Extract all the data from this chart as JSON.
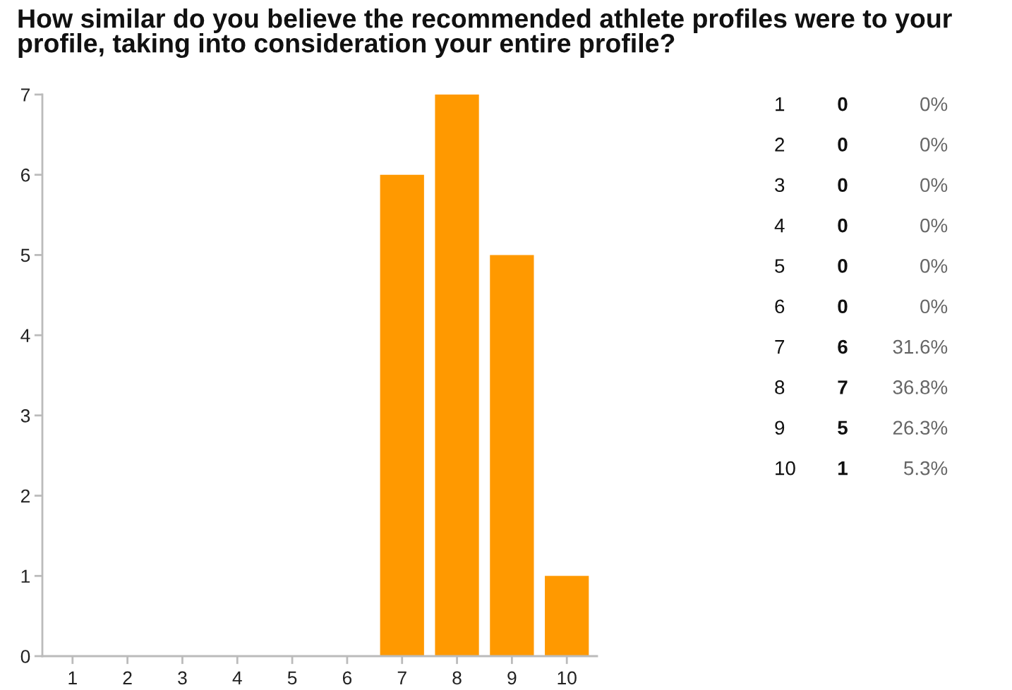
{
  "chart_data": {
    "type": "bar",
    "title": "How similar do you believe the recommended athlete profiles were to your profile, taking into consideration your entire profile?",
    "categories": [
      "1",
      "2",
      "3",
      "4",
      "5",
      "6",
      "7",
      "8",
      "9",
      "10"
    ],
    "values": [
      0,
      0,
      0,
      0,
      0,
      0,
      6,
      7,
      5,
      1
    ],
    "color": "#ff9900",
    "ylim": [
      0,
      7
    ],
    "yticks": [
      0,
      1,
      2,
      3,
      4,
      5,
      6,
      7
    ],
    "annotations": [
      "0",
      "0%",
      "0",
      "0%",
      "0",
      "0%",
      "0",
      "0%",
      "0",
      "0%",
      "0",
      "0%",
      "6",
      "31.6%",
      "7",
      "36.8%",
      "5",
      "26.3%",
      "1",
      "5.3%"
    ]
  }
}
